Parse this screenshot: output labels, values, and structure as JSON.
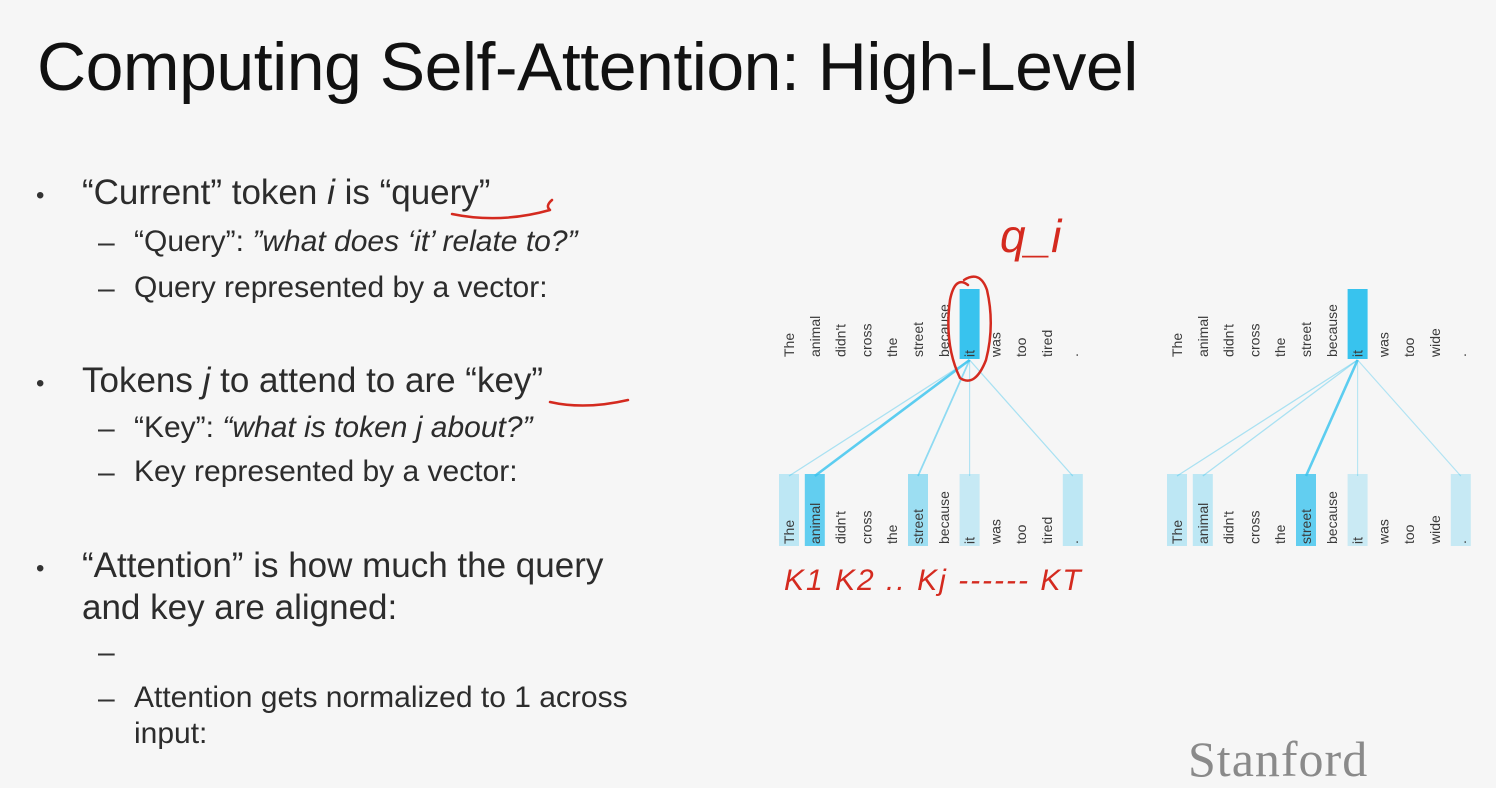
{
  "slide": {
    "title": "Computing Self-Attention: High-Level",
    "brand": "Stanford",
    "bullets": [
      {
        "pre": "“Current” token ",
        "var": "i",
        "post": " is “query”",
        "subs": [
          {
            "normal": "“Query”: ",
            "italic": "”what does ‘it’ relate to?”"
          },
          {
            "normal": "Query represented by a vector:",
            "italic": ""
          }
        ]
      },
      {
        "pre": "Tokens ",
        "var": "j",
        "post": " to attend to are “key”",
        "subs": [
          {
            "normal": "“Key”: ",
            "italic": "“what is token j about?”"
          },
          {
            "normal": "Key represented by a vector:",
            "italic": ""
          }
        ]
      },
      {
        "line1": "“Attention” is how much the query",
        "line2": "and key are aligned:",
        "subs": [
          {
            "normal": "",
            "italic": ""
          },
          {
            "line1": "Attention gets normalized to 1 across",
            "line2": "input:"
          }
        ]
      }
    ],
    "dash_glyph": "–",
    "bullet_glyph": "•"
  },
  "annotations": {
    "query_label": "q_i",
    "keys_label": "K1 K2 .. Kj ------ KT"
  },
  "diagrams": [
    {
      "tokens": [
        "The",
        "animal",
        "didn't",
        "cross",
        "the",
        "street",
        "because",
        "it",
        "was",
        "too",
        "tired",
        "."
      ],
      "query_index": 7,
      "attention": [
        0.2,
        0.75,
        0.02,
        0.02,
        0.02,
        0.4,
        0.05,
        0.15,
        0.03,
        0.03,
        0.05,
        0.2
      ]
    },
    {
      "tokens": [
        "The",
        "animal",
        "didn't",
        "cross",
        "the",
        "street",
        "because",
        "it",
        "was",
        "too",
        "wide",
        "."
      ],
      "query_index": 7,
      "attention": [
        0.2,
        0.2,
        0.02,
        0.02,
        0.02,
        0.75,
        0.05,
        0.12,
        0.03,
        0.03,
        0.05,
        0.15
      ]
    }
  ],
  "colors": {
    "highlight_strong": "#38c3ee",
    "highlight_soft": "#dcf3fb",
    "ink_red": "#d42a1f",
    "brand_gray": "#8a8a8a"
  }
}
